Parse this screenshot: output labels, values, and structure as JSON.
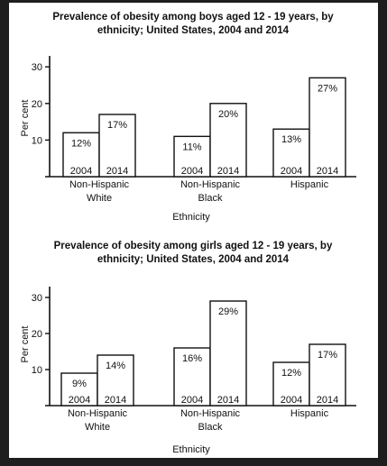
{
  "chart_data": [
    {
      "type": "bar",
      "title_line1": "Prevalence of obesity among boys aged 12 - 19 years, by",
      "title_line2": "ethnicity; United States, 2004 and 2014",
      "xlabel": "Ethnicity",
      "ylabel": "Per cent",
      "ylim": [
        0,
        33
      ],
      "yticks": [
        10,
        20,
        30
      ],
      "grid": false,
      "categories": [
        [
          "Non-Hispanic",
          "White"
        ],
        [
          "Non-Hispanic",
          "Black"
        ],
        [
          "Hispanic"
        ]
      ],
      "series": [
        {
          "name": "2004",
          "values": [
            12,
            11,
            13
          ],
          "labels": [
            "12%",
            "11%",
            "13%"
          ]
        },
        {
          "name": "2014",
          "values": [
            17,
            20,
            27
          ],
          "labels": [
            "17%",
            "20%",
            "27%"
          ]
        }
      ]
    },
    {
      "type": "bar",
      "title_line1": "Prevalence of obesity among girls aged 12 - 19 years, by",
      "title_line2": "ethnicity; United States, 2004 and 2014",
      "xlabel": "Ethnicity",
      "ylabel": "Per cent",
      "ylim": [
        0,
        33
      ],
      "yticks": [
        10,
        20,
        30
      ],
      "grid": false,
      "categories": [
        [
          "Non-Hispanic",
          "White"
        ],
        [
          "Non-Hispanic",
          "Black"
        ],
        [
          "Hispanic"
        ]
      ],
      "series": [
        {
          "name": "2004",
          "values": [
            9,
            16,
            12
          ],
          "labels": [
            "9%",
            "16%",
            "12%"
          ]
        },
        {
          "name": "2014",
          "values": [
            14,
            29,
            17
          ],
          "labels": [
            "14%",
            "29%",
            "17%"
          ]
        }
      ]
    }
  ],
  "colors": {
    "frame": "#1e1e1e",
    "panel": "#ffffff",
    "bar_fill": "#ffffff",
    "ink": "#111111"
  }
}
